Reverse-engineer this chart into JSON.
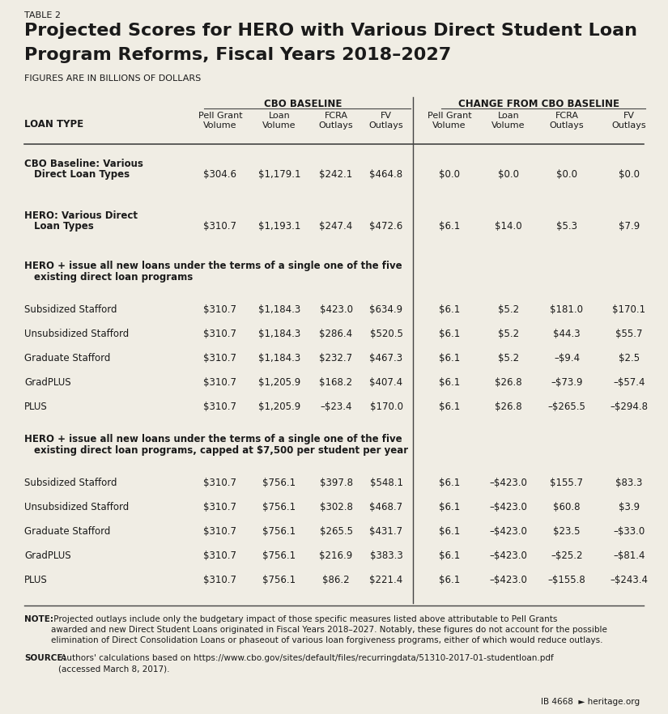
{
  "table_label": "TABLE 2",
  "title_line1": "Projected Scores for HERO with Various Direct Student Loan",
  "title_line2": "Program Reforms, Fiscal Years 2018–2027",
  "subtitle": "FIGURES ARE IN BILLIONS OF DOLLARS",
  "col_group1": "CBO BASELINE",
  "col_group2": "CHANGE FROM CBO BASELINE",
  "row_header": "LOAN TYPE",
  "col_headers": [
    "Pell Grant\nVolume",
    "Loan\nVolume",
    "FCRA\nOutlays",
    "FV\nOutlays",
    "Pell Grant\nVolume",
    "Loan\nVolume",
    "FCRA\nOutlays",
    "FV\nOutlays"
  ],
  "rows": [
    {
      "type": "data_bold",
      "label": "CBO Baseline: Various\n  Direct Loan Types",
      "vals": [
        "$304.6",
        "$1,179.1",
        "$242.1",
        "$464.8",
        "$0.0",
        "$0.0",
        "$0.0",
        "$0.0"
      ]
    },
    {
      "type": "data_bold",
      "label": "HERO: Various Direct\n  Loan Types",
      "vals": [
        "$310.7",
        "$1,193.1",
        "$247.4",
        "$472.6",
        "$6.1",
        "$14.0",
        "$5.3",
        "$7.9"
      ]
    },
    {
      "type": "section",
      "label": "HERO + issue all new loans under the terms of a single one of the five\n  existing direct loan programs"
    },
    {
      "type": "data",
      "label": "Subsidized Stafford",
      "vals": [
        "$310.7",
        "$1,184.3",
        "$423.0",
        "$634.9",
        "$6.1",
        "$5.2",
        "$181.0",
        "$170.1"
      ]
    },
    {
      "type": "data",
      "label": "Unsubsidized Stafford",
      "vals": [
        "$310.7",
        "$1,184.3",
        "$286.4",
        "$520.5",
        "$6.1",
        "$5.2",
        "$44.3",
        "$55.7"
      ]
    },
    {
      "type": "data",
      "label": "Graduate Stafford",
      "vals": [
        "$310.7",
        "$1,184.3",
        "$232.7",
        "$467.3",
        "$6.1",
        "$5.2",
        "–$9.4",
        "$2.5"
      ]
    },
    {
      "type": "data",
      "label": "GradPLUS",
      "vals": [
        "$310.7",
        "$1,205.9",
        "$168.2",
        "$407.4",
        "$6.1",
        "$26.8",
        "–$73.9",
        "–$57.4"
      ]
    },
    {
      "type": "data",
      "label": "PLUS",
      "vals": [
        "$310.7",
        "$1,205.9",
        "–$23.4",
        "$170.0",
        "$6.1",
        "$26.8",
        "–$265.5",
        "–$294.8"
      ]
    },
    {
      "type": "section",
      "label": "HERO + issue all new loans under the terms of a single one of the five\n  existing direct loan programs, capped at $7,500 per student per year"
    },
    {
      "type": "data",
      "label": "Subsidized Stafford",
      "vals": [
        "$310.7",
        "$756.1",
        "$397.8",
        "$548.1",
        "$6.1",
        "–$423.0",
        "$155.7",
        "$83.3"
      ]
    },
    {
      "type": "data",
      "label": "Unsubsidized Stafford",
      "vals": [
        "$310.7",
        "$756.1",
        "$302.8",
        "$468.7",
        "$6.1",
        "–$423.0",
        "$60.8",
        "$3.9"
      ]
    },
    {
      "type": "data",
      "label": "Graduate Stafford",
      "vals": [
        "$310.7",
        "$756.1",
        "$265.5",
        "$431.7",
        "$6.1",
        "–$423.0",
        "$23.5",
        "–$33.0"
      ]
    },
    {
      "type": "data",
      "label": "GradPLUS",
      "vals": [
        "$310.7",
        "$756.1",
        "$216.9",
        "$383.3",
        "$6.1",
        "–$423.0",
        "–$25.2",
        "–$81.4"
      ]
    },
    {
      "type": "data",
      "label": "PLUS",
      "vals": [
        "$310.7",
        "$756.1",
        "$86.2",
        "$221.4",
        "$6.1",
        "–$423.0",
        "–$155.8",
        "–$243.4"
      ]
    }
  ],
  "note_bold": "NOTE:",
  "note_rest": " Projected outlays include only the budgetary impact of those specific measures listed above attributable to Pell Grants\nawarded and new Direct Student Loans originated in Fiscal Years 2018–2027. Notably, these figures do not account for the possible\nelimination of Direct Consolidation Loans or phaseout of various loan forgiveness programs, either of which would reduce outlays.",
  "source_bold": "SOURCE:",
  "source_rest": " Authors' calculations based on https://www.cbo.gov/sites/default/files/recurringdata/51310-2017-01-studentloan.pdf\n(accessed March 8, 2017).",
  "footer": "IB 4668   heritage.org",
  "bg_color": "#f0ede4",
  "text_color": "#1a1a1a",
  "line_color": "#444444"
}
